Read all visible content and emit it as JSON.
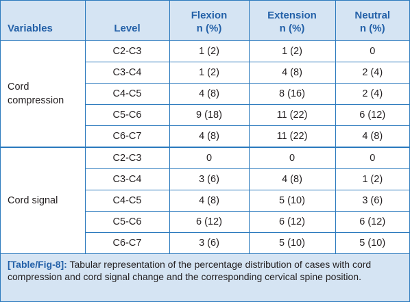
{
  "table": {
    "headers": {
      "variables": "Variables",
      "level": "Level",
      "flexion": [
        "Flexion",
        "n (%)"
      ],
      "extension": [
        "Extension",
        "n (%)"
      ],
      "neutral": [
        "Neutral",
        "n (%)"
      ]
    },
    "groups": [
      {
        "variable": "Cord compression",
        "variable_lines": [
          "Cord",
          "compression"
        ],
        "rows": [
          {
            "level": "C2-C3",
            "flexion": "1 (2)",
            "extension": "1 (2)",
            "neutral": "0"
          },
          {
            "level": "C3-C4",
            "flexion": "1 (2)",
            "extension": "4 (8)",
            "neutral": "2 (4)"
          },
          {
            "level": "C4-C5",
            "flexion": "4 (8)",
            "extension": "8 (16)",
            "neutral": "2 (4)"
          },
          {
            "level": "C5-C6",
            "flexion": "9 (18)",
            "extension": "11 (22)",
            "neutral": "6 (12)"
          },
          {
            "level": "C6-C7",
            "flexion": "4 (8)",
            "extension": "11 (22)",
            "neutral": "4 (8)"
          }
        ]
      },
      {
        "variable": "Cord signal",
        "variable_lines": [
          "Cord signal"
        ],
        "rows": [
          {
            "level": "C2-C3",
            "flexion": "0",
            "extension": "0",
            "neutral": "0"
          },
          {
            "level": "C3-C4",
            "flexion": "3 (6)",
            "extension": "4 (8)",
            "neutral": "1 (2)"
          },
          {
            "level": "C4-C5",
            "flexion": "4 (8)",
            "extension": "5 (10)",
            "neutral": "3 (6)"
          },
          {
            "level": "C5-C6",
            "flexion": "6 (12)",
            "extension": "6 (12)",
            "neutral": "6 (12)"
          },
          {
            "level": "C6-C7",
            "flexion": "3 (6)",
            "extension": "5 (10)",
            "neutral": "5 (10)"
          }
        ]
      }
    ]
  },
  "caption": {
    "label": "[Table/Fig-8]:",
    "text": " Tabular representation of the percentage distribution of cases with cord compression and cord signal change and the corresponding cervical spine position."
  },
  "colors": {
    "accent": "#2461a8",
    "border": "#2a79bd",
    "header_bg": "#d5e4f3",
    "text": "#231f20"
  }
}
